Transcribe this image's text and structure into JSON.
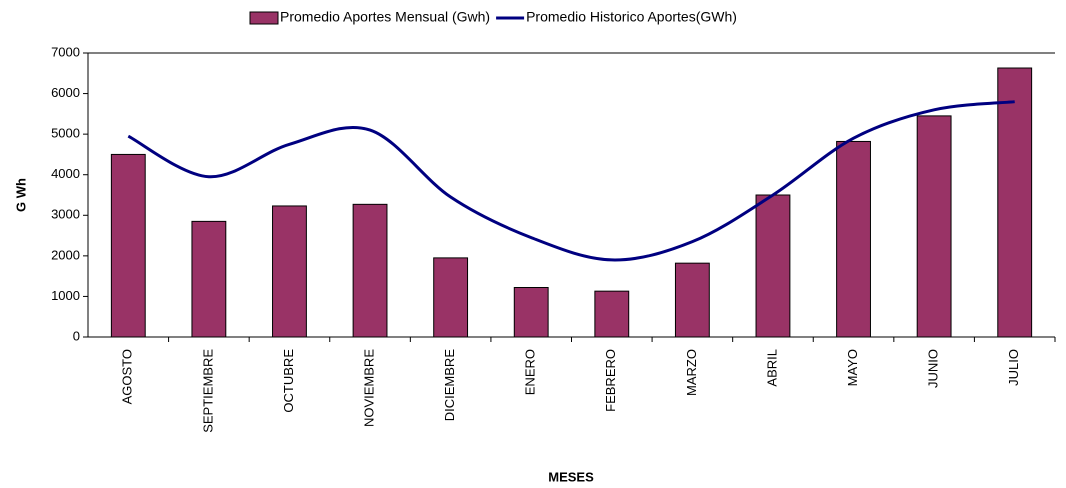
{
  "chart_data": {
    "type": "bar-line",
    "categories": [
      "AGOSTO",
      "SEPTIEMBRE",
      "OCTUBRE",
      "NOVIEMBRE",
      "DICIEMBRE",
      "ENERO",
      "FEBRERO",
      "MARZO",
      "ABRIL",
      "MAYO",
      "JUNIO",
      "JULIO"
    ],
    "series": [
      {
        "name": "Promedio Aportes Mensual (Gwh)",
        "type": "bar",
        "color": "#993366",
        "values": [
          4500,
          2850,
          3230,
          3270,
          1950,
          1220,
          1130,
          1820,
          3500,
          4820,
          5450,
          6630
        ]
      },
      {
        "name": "Promedio Historico Aportes(GWh)",
        "type": "line",
        "color": "#000080",
        "values": [
          4950,
          3950,
          4750,
          5100,
          3450,
          2450,
          1900,
          2350,
          3500,
          4900,
          5600,
          5800
        ]
      }
    ],
    "ylabel": "G Wh",
    "xlabel": "MESES",
    "ylim": [
      0,
      7000
    ],
    "yticks": [
      0,
      1000,
      2000,
      3000,
      4000,
      5000,
      6000,
      7000
    ],
    "legend": "top"
  }
}
